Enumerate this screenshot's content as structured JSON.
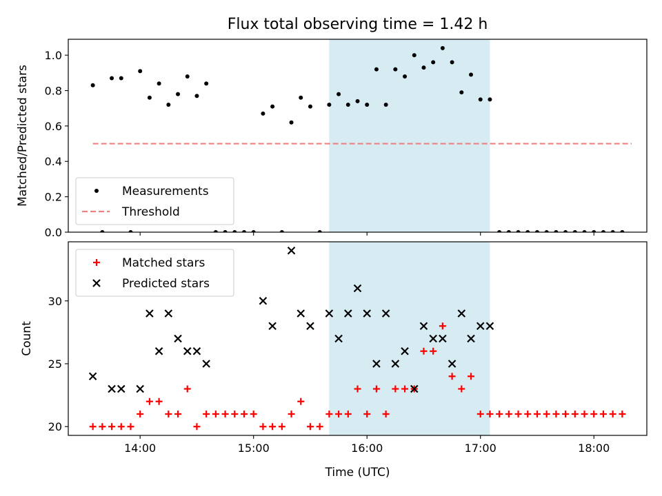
{
  "figure": {
    "title": "Flux total observing time = 1.42 h",
    "xlabel": "Time (UTC)"
  },
  "chart_data": [
    {
      "type": "scatter",
      "ylabel": "Matched/Predicted stars",
      "xlim": [
        "13:22",
        "18:28"
      ],
      "ylim": [
        0,
        1.09
      ],
      "yticks": [
        "0.0",
        "0.2",
        "0.4",
        "0.6",
        "0.8",
        "1.0"
      ],
      "highlight_span": [
        "15:40",
        "17:05"
      ],
      "legend": {
        "position": "lower-left",
        "entries": [
          "Measurements",
          "Threshold"
        ]
      },
      "threshold": {
        "name": "Threshold",
        "value": 0.5,
        "x_range": [
          "13:35",
          "18:20"
        ],
        "color": "#f08080",
        "style": "dashed"
      },
      "series": [
        {
          "name": "Measurements",
          "marker": "dot",
          "color": "#000000",
          "x": [
            "13:35",
            "13:40",
            "13:45",
            "13:50",
            "13:55",
            "14:00",
            "14:05",
            "14:10",
            "14:15",
            "14:20",
            "14:25",
            "14:30",
            "14:35",
            "14:40",
            "14:45",
            "14:50",
            "14:55",
            "15:00",
            "15:05",
            "15:10",
            "15:15",
            "15:20",
            "15:25",
            "15:30",
            "15:35",
            "15:40",
            "15:45",
            "15:50",
            "15:55",
            "16:00",
            "16:05",
            "16:10",
            "16:15",
            "16:20",
            "16:25",
            "16:30",
            "16:35",
            "16:40",
            "16:45",
            "16:50",
            "16:55",
            "17:00",
            "17:05",
            "17:10",
            "17:15",
            "17:20",
            "17:25",
            "17:30",
            "17:35",
            "17:40",
            "17:45",
            "17:50",
            "17:55",
            "18:00",
            "18:05",
            "18:10",
            "18:15"
          ],
          "y": [
            0.83,
            0,
            0.87,
            0.87,
            0,
            0.91,
            0.76,
            0.84,
            0.72,
            0.78,
            0.88,
            0.77,
            0.84,
            0,
            0,
            0,
            0,
            0,
            0.67,
            0.71,
            0,
            0.62,
            0.76,
            0.71,
            0,
            0.72,
            0.78,
            0.72,
            0.74,
            0.72,
            0.92,
            0.72,
            0.92,
            0.88,
            1.0,
            0.93,
            0.96,
            1.04,
            0.96,
            0.79,
            0.89,
            0.75,
            0.75,
            0,
            0,
            0,
            0,
            0,
            0,
            0,
            0,
            0,
            0,
            0,
            0,
            0,
            0
          ]
        }
      ]
    },
    {
      "type": "scatter",
      "ylabel": "Count",
      "xlim": [
        "13:22",
        "18:28"
      ],
      "ylim": [
        19.3,
        34.7
      ],
      "yticks": [
        "20",
        "25",
        "30"
      ],
      "xticks": [
        "14:00",
        "15:00",
        "16:00",
        "17:00",
        "18:00"
      ],
      "highlight_span": [
        "15:40",
        "17:05"
      ],
      "legend": {
        "position": "upper-left",
        "entries": [
          "Matched stars",
          "Predicted stars"
        ]
      },
      "series": [
        {
          "name": "Matched stars",
          "marker": "plus",
          "color": "#ff0000",
          "x": [
            "13:35",
            "13:40",
            "13:45",
            "13:50",
            "13:55",
            "14:00",
            "14:05",
            "14:10",
            "14:15",
            "14:20",
            "14:25",
            "14:30",
            "14:35",
            "14:40",
            "14:45",
            "14:50",
            "14:55",
            "15:00",
            "15:05",
            "15:10",
            "15:15",
            "15:20",
            "15:25",
            "15:30",
            "15:35",
            "15:40",
            "15:45",
            "15:50",
            "15:55",
            "16:00",
            "16:05",
            "16:10",
            "16:15",
            "16:20",
            "16:25",
            "16:30",
            "16:35",
            "16:40",
            "16:45",
            "16:50",
            "16:55",
            "17:00",
            "17:05",
            "17:10",
            "17:15",
            "17:20",
            "17:25",
            "17:30",
            "17:35",
            "17:40",
            "17:45",
            "17:50",
            "17:55",
            "18:00",
            "18:05",
            "18:10",
            "18:15"
          ],
          "y": [
            20,
            20,
            20,
            20,
            20,
            21,
            22,
            22,
            21,
            21,
            23,
            20,
            21,
            21,
            21,
            21,
            21,
            21,
            20,
            20,
            20,
            21,
            22,
            20,
            20,
            21,
            21,
            21,
            23,
            21,
            23,
            21,
            23,
            23,
            23,
            26,
            26,
            28,
            24,
            23,
            24,
            21,
            21,
            21,
            21,
            21,
            21,
            21,
            21,
            21,
            21,
            21,
            21,
            21,
            21,
            21,
            21
          ]
        },
        {
          "name": "Predicted stars",
          "marker": "x",
          "color": "#000000",
          "x": [
            "13:35",
            "13:45",
            "13:50",
            "14:00",
            "14:05",
            "14:10",
            "14:15",
            "14:20",
            "14:25",
            "14:30",
            "14:35",
            "15:05",
            "15:10",
            "15:20",
            "15:25",
            "15:30",
            "15:40",
            "15:45",
            "15:50",
            "15:55",
            "16:00",
            "16:05",
            "16:10",
            "16:15",
            "16:20",
            "16:25",
            "16:30",
            "16:35",
            "16:40",
            "16:45",
            "16:50",
            "16:55",
            "17:00",
            "17:05"
          ],
          "y": [
            24,
            23,
            23,
            23,
            29,
            26,
            29,
            27,
            26,
            26,
            25,
            30,
            28,
            34,
            29,
            28,
            29,
            27,
            29,
            31,
            29,
            25,
            29,
            25,
            26,
            23,
            28,
            27,
            27,
            25,
            29,
            27,
            28,
            28
          ]
        }
      ]
    }
  ],
  "colors": {
    "highlight": "#add8e6",
    "axes": "#000000"
  }
}
